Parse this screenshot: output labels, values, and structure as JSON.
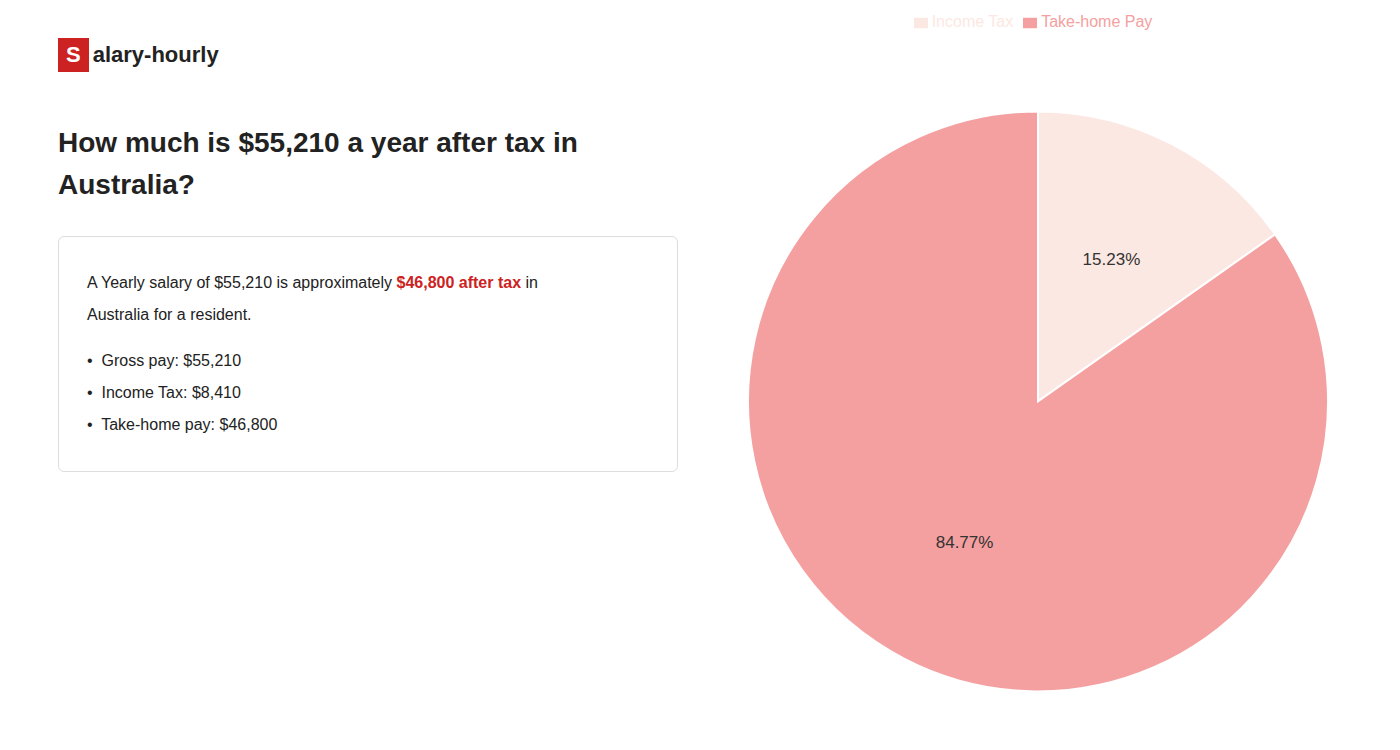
{
  "chart_data": {
    "type": "pie",
    "title": "How much is $55,210 a year after tax in Australia?",
    "annotations": [
      {
        "text": "S",
        "color": "#cc2222"
      },
      {
        "text": "alary-hourly"
      },
      {
        "text": "A Yearly salary of $55,210 is approximately "
      },
      {
        "text": "$46,800 after tax",
        "color": "#cc2222"
      },
      {
        "text": " in"
      },
      {
        "text": "Australia for a resident."
      },
      {
        "text": "•  Gross pay: $55,210"
      },
      {
        "text": "•  Income Tax: $8,410"
      },
      {
        "text": "•  Take-home pay: $46,800"
      }
    ],
    "categories": [
      "Income Tax",
      "Take-home Pay"
    ],
    "values": [
      15.23,
      84.77
    ],
    "value_labels": [
      "15.23%",
      "84.77%"
    ],
    "data_labels": true,
    "colors": [
      "#fce8e2",
      "#f5a0a0"
    ],
    "legend": "top"
  }
}
